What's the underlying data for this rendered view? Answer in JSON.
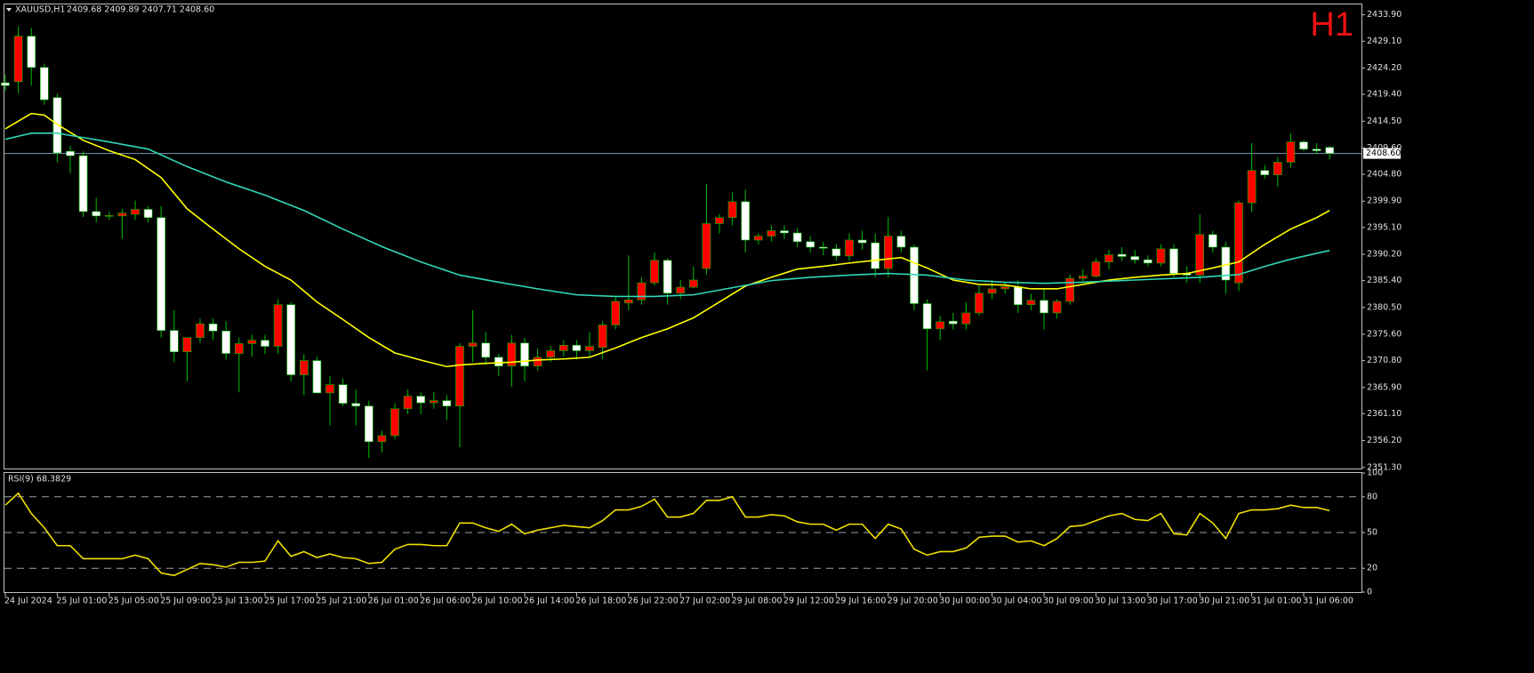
{
  "chart_data": [
    {
      "type": "candlestick",
      "title": "XAUUSD,H1",
      "subtitle": "2409.68 2409.89 2407.71 2408.60",
      "annotation": "H1",
      "categories": [
        "24 Jul 2024",
        null,
        null,
        null,
        "25 Jul 01:00",
        null,
        null,
        null,
        "25 Jul 05:00",
        null,
        null,
        null,
        "25 Jul 09:00",
        null,
        null,
        null,
        "25 Jul 13:00",
        null,
        null,
        null,
        "25 Jul 17:00",
        null,
        null,
        null,
        "25 Jul 21:00",
        null,
        null,
        null,
        "26 Jul 01:00",
        null,
        null,
        null,
        "26 Jul 06:00",
        null,
        null,
        null,
        "26 Jul 10:00",
        null,
        null,
        null,
        "26 Jul 14:00",
        null,
        null,
        null,
        "26 Jul 18:00",
        null,
        null,
        null,
        "26 Jul 22:00",
        null,
        null,
        null,
        "27 Jul 02:00",
        null,
        null,
        null,
        "29 Jul 08:00",
        null,
        null,
        null,
        "29 Jul 12:00",
        null,
        null,
        null,
        "29 Jul 16:00",
        null,
        null,
        null,
        "29 Jul 20:00",
        null,
        null,
        null,
        "30 Jul 00:00",
        null,
        null,
        null,
        "30 Jul 04:00",
        null,
        null,
        null,
        "30 Jul 09:00",
        null,
        null,
        null,
        "30 Jul 13:00",
        null,
        null,
        null,
        "30 Jul 17:00",
        null,
        null,
        null,
        "30 Jul 21:00",
        null,
        null,
        null,
        "31 Jul 01:00",
        null,
        null,
        null,
        "31 Jul 06:00",
        null,
        null
      ],
      "open": [
        2421.5,
        2421.7,
        2430,
        2424.3,
        2418.8,
        2409,
        2408.2,
        2398,
        2397.2,
        2397.2,
        2397.5,
        2398.4,
        2396.9,
        2376.3,
        2372.4,
        2375,
        2377.5,
        2376.2,
        2372.1,
        2373.9,
        2374.5,
        2373.4,
        2381,
        2368.2,
        2370.8,
        2364.9,
        2366.4,
        2363,
        2362.5,
        2356,
        2357.1,
        2362,
        2364.3,
        2363.1,
        2363.5,
        2362.5,
        2373.4,
        2374,
        2371.4,
        2369.8,
        2374,
        2369.8,
        2371.4,
        2372.6,
        2373.6,
        2372.6,
        2373.2,
        2377.3,
        2381.3,
        2381.9,
        2385,
        2389.1,
        2383.1,
        2384.2,
        2387.6,
        2395.8,
        2396.9,
        2399.8,
        2392.8,
        2393.5,
        2394.5,
        2394.1,
        2392.5,
        2391.5,
        2391.2,
        2389.9,
        2392.8,
        2392.3,
        2387.6,
        2393.5,
        2391.5,
        2381.2,
        2376.6,
        2378,
        2377.5,
        2379.5,
        2383.1,
        2383.9,
        2384.3,
        2381,
        2381.8,
        2379.5,
        2381.6,
        2385.8,
        2386.2,
        2388.8,
        2390.2,
        2389.8,
        2389.2,
        2388.6,
        2391.2,
        2386.7,
        2386.4,
        2393.8,
        2391.5,
        2385,
        2399.6,
        2405.5,
        2404.7,
        2407,
        2410.7,
        2409.4,
        2409.7
      ],
      "high": [
        2423,
        2431.8,
        2431.5,
        2425,
        2419.5,
        2410,
        2409,
        2400.5,
        2398,
        2398.5,
        2400,
        2399,
        2399,
        2380,
        2375,
        2378.5,
        2378.5,
        2378,
        2375,
        2375.5,
        2375.5,
        2382,
        2381.5,
        2372,
        2371.5,
        2368,
        2367.5,
        2365.5,
        2363.5,
        2358,
        2363,
        2365.5,
        2365,
        2365,
        2364.5,
        2374,
        2380,
        2376,
        2372,
        2375.5,
        2375,
        2373,
        2373.5,
        2374.5,
        2374.5,
        2376,
        2378,
        2382.5,
        2390,
        2386,
        2390.5,
        2389.5,
        2385.5,
        2388,
        2403,
        2397.5,
        2401.5,
        2402,
        2394,
        2395.5,
        2395.5,
        2395,
        2393.5,
        2392.5,
        2392,
        2394,
        2394.5,
        2394,
        2397,
        2394.5,
        2392,
        2382,
        2379,
        2379.5,
        2381.5,
        2384.5,
        2385.5,
        2385,
        2385.5,
        2383,
        2384,
        2382,
        2386.5,
        2387.5,
        2389.5,
        2391,
        2391.5,
        2391,
        2390,
        2392,
        2392,
        2388,
        2397.5,
        2394.5,
        2392.5,
        2400,
        2410.5,
        2406.5,
        2408,
        2412.3,
        2411,
        2410.5,
        2410
      ],
      "low": [
        2420,
        2419.6,
        2421,
        2417.5,
        2407,
        2405,
        2397,
        2396,
        2396.5,
        2393,
        2396.5,
        2396,
        2375,
        2370.5,
        2367,
        2374,
        2374.5,
        2371,
        2365,
        2371.5,
        2372,
        2372,
        2367,
        2364.5,
        2365,
        2359,
        2362.5,
        2359,
        2353,
        2354,
        2356.5,
        2361,
        2361,
        2362,
        2360,
        2355,
        2370.5,
        2370,
        2368,
        2366,
        2367,
        2369,
        2370.5,
        2371.5,
        2371,
        2371.5,
        2371,
        2376.5,
        2380,
        2381,
        2384.5,
        2381,
        2382,
        2384,
        2386.5,
        2394,
        2395.5,
        2390.5,
        2392,
        2392.5,
        2393,
        2391.5,
        2390.5,
        2390,
        2389,
        2389,
        2391,
        2386,
        2386,
        2390.5,
        2380,
        2369,
        2374.5,
        2376.5,
        2376.5,
        2379,
        2382,
        2383,
        2379.5,
        2380,
        2376.5,
        2378.5,
        2381,
        2385,
        2386,
        2387.5,
        2389,
        2388.5,
        2388,
        2388,
        2386,
        2385,
        2385,
        2390.5,
        2383,
        2383.5,
        2398,
        2404,
        2402.5,
        2406,
        2409,
        2408.5,
        2407.5
      ],
      "close": [
        2421.0,
        2430,
        2424.3,
        2418.4,
        2408.7,
        2408.2,
        2398,
        2397.2,
        2397.3,
        2397.7,
        2398.4,
        2396.9,
        2376.3,
        2372.4,
        2375,
        2377.5,
        2376.2,
        2372.1,
        2373.9,
        2374.5,
        2373.4,
        2381,
        2368.2,
        2370.8,
        2364.9,
        2366.4,
        2363,
        2362.5,
        2356,
        2357.1,
        2362,
        2364.3,
        2363.1,
        2363.5,
        2362.5,
        2373.4,
        2374,
        2371.4,
        2369.8,
        2374,
        2369.8,
        2371.4,
        2372.6,
        2373.6,
        2372.6,
        2373.4,
        2377.3,
        2381.6,
        2381.9,
        2385,
        2389.1,
        2383.1,
        2384.2,
        2385.5,
        2395.8,
        2396.9,
        2399.8,
        2392.8,
        2393.5,
        2394.5,
        2394.1,
        2392.5,
        2391.5,
        2391.3,
        2389.9,
        2392.8,
        2392.3,
        2387.6,
        2393.5,
        2391.5,
        2381.2,
        2376.6,
        2377.9,
        2377.5,
        2379.5,
        2383.1,
        2383.9,
        2384.3,
        2381,
        2381.8,
        2379.5,
        2381.6,
        2385.8,
        2386.2,
        2388.8,
        2390.1,
        2389.8,
        2389.2,
        2388.6,
        2391.2,
        2386.7,
        2386.4,
        2393.8,
        2391.5,
        2385.5,
        2399.6,
        2405.5,
        2404.7,
        2407,
        2410.7,
        2409.4,
        2409.1,
        2408.6
      ],
      "up_color": "#ff0000",
      "down_color": "#ffffff",
      "wick_color": "#00c000",
      "series": [
        {
          "color": "#ffff00",
          "x": [
            0,
            2,
            3,
            4,
            6,
            8,
            10,
            12,
            14,
            16,
            18,
            20,
            22,
            24,
            26,
            28,
            30,
            32,
            34,
            35,
            37,
            39,
            41,
            43,
            45,
            47,
            49,
            51,
            53,
            55,
            57,
            59,
            61,
            63,
            65,
            67,
            69,
            71,
            73,
            75,
            77,
            79,
            81,
            83,
            85,
            87,
            89,
            91,
            93,
            95,
            97,
            99,
            101,
            102
          ],
          "values": [
            2413.1,
            2415.9,
            2415.6,
            2413.9,
            2411.0,
            2409.1,
            2407.5,
            2404.2,
            2398.5,
            2394.8,
            2391.2,
            2388.0,
            2385.5,
            2381.5,
            2378.3,
            2375.0,
            2372.2,
            2370.9,
            2369.7,
            2370.0,
            2370.3,
            2370.5,
            2370.9,
            2371.1,
            2371.4,
            2373.1,
            2375.0,
            2376.6,
            2378.6,
            2381.5,
            2384.4,
            2386.0,
            2387.5,
            2388.0,
            2388.6,
            2389.1,
            2389.6,
            2387.7,
            2385.5,
            2384.7,
            2384.6,
            2383.9,
            2383.9,
            2384.7,
            2385.5,
            2386.0,
            2386.4,
            2386.7,
            2387.7,
            2388.8,
            2392.0,
            2394.8,
            2396.9,
            2398.2
          ]
        },
        {
          "color": "#30d8b8",
          "x": [
            0,
            2,
            4,
            6,
            8,
            11,
            14,
            17,
            20,
            23,
            26,
            29,
            32,
            35,
            38,
            41,
            44,
            47,
            50,
            53,
            56,
            59,
            62,
            65,
            68,
            71,
            74,
            77,
            80,
            83,
            86,
            89,
            92,
            95,
            97,
            99,
            102
          ],
          "values": [
            2411.2,
            2412.3,
            2412.3,
            2411.5,
            2410.7,
            2409.4,
            2406.2,
            2403.4,
            2401.0,
            2398.2,
            2394.8,
            2391.6,
            2388.8,
            2386.4,
            2385.1,
            2383.9,
            2382.8,
            2382.5,
            2382.5,
            2382.8,
            2384.1,
            2385.4,
            2386.0,
            2386.4,
            2386.7,
            2386.4,
            2385.5,
            2385.1,
            2384.9,
            2385.1,
            2385.4,
            2385.7,
            2386.0,
            2386.5,
            2388.0,
            2389.3,
            2390.9
          ]
        }
      ],
      "current_price": {
        "value": 2408.6,
        "label": "2408.60"
      },
      "ylim": [
        2351.1,
        2435.8
      ],
      "yticks": [
        {
          "value": 2433.9,
          "label": "2433.90"
        },
        {
          "value": 2429.1,
          "label": "2429.10"
        },
        {
          "value": 2424.2,
          "label": "2424.20"
        },
        {
          "value": 2419.4,
          "label": "2419.40"
        },
        {
          "value": 2414.5,
          "label": "2414.50"
        },
        {
          "value": 2409.6,
          "label": "2409.60"
        },
        {
          "value": 2404.8,
          "label": "2404.80"
        },
        {
          "value": 2399.9,
          "label": "2399.90"
        },
        {
          "value": 2395.1,
          "label": "2395.10"
        },
        {
          "value": 2390.2,
          "label": "2390.20"
        },
        {
          "value": 2385.4,
          "label": "2385.40"
        },
        {
          "value": 2380.5,
          "label": "2380.50"
        },
        {
          "value": 2375.6,
          "label": "2375.60"
        },
        {
          "value": 2370.8,
          "label": "2370.80"
        },
        {
          "value": 2365.9,
          "label": "2365.90"
        },
        {
          "value": 2361.1,
          "label": "2361.10"
        },
        {
          "value": 2356.2,
          "label": "2356.20"
        },
        {
          "value": 2351.3,
          "label": "2351.30"
        }
      ]
    },
    {
      "type": "line",
      "title": "RSI(9) 68.3829",
      "color": "#f0e000",
      "values": [
        73,
        83,
        66,
        54,
        39,
        39,
        28,
        28,
        28,
        28,
        31,
        28,
        16,
        14,
        19,
        24,
        23,
        21,
        25,
        25,
        26,
        43,
        30,
        34,
        29,
        32,
        29,
        28,
        24,
        25,
        36,
        40,
        40,
        39,
        39,
        58,
        58,
        54,
        51,
        57,
        49,
        52,
        54,
        56,
        55,
        54,
        60,
        69,
        69,
        72,
        78,
        63,
        63,
        66,
        77,
        77,
        80,
        63,
        63,
        65,
        64,
        59,
        57,
        57,
        52,
        57,
        57,
        45,
        57,
        53,
        36,
        31,
        34,
        34,
        37,
        46,
        47,
        47,
        42,
        43,
        39,
        45,
        55,
        56,
        60,
        64,
        66,
        61,
        60,
        66,
        49,
        48,
        66,
        58,
        45,
        66,
        69,
        69,
        70,
        73,
        71,
        71,
        68.4
      ],
      "ylim": [
        0,
        100
      ],
      "yticks": [
        0,
        20,
        50,
        80,
        100
      ],
      "levels": [
        20,
        50,
        80
      ]
    }
  ]
}
